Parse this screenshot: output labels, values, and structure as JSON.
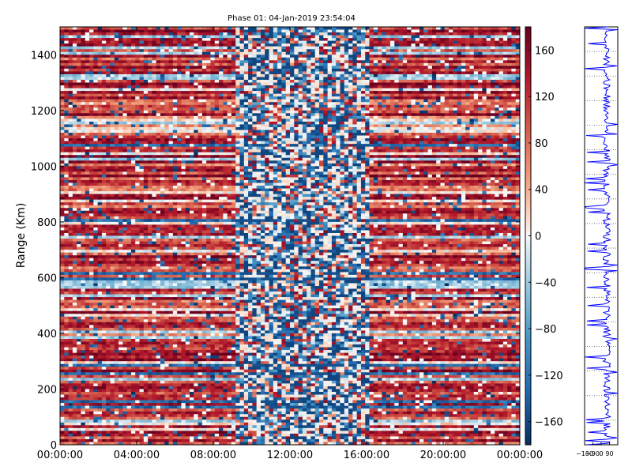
{
  "chart_data": [
    {
      "type": "heatmap",
      "title": "Phase 01: 04-Jan-2019 23:54:04",
      "ylabel": "Range (Km)",
      "xlabel": "",
      "x_ticks": [
        "00:00:00",
        "04:00:00",
        "08:00:00",
        "12:00:00",
        "16:00:00",
        "20:00:00",
        "00:00:00"
      ],
      "x_range_hours": [
        0,
        24
      ],
      "y_ticks": [
        0,
        200,
        400,
        600,
        800,
        1000,
        1200,
        1400
      ],
      "ylim": [
        0,
        1500
      ],
      "colorbar": {
        "ticks": [
          160,
          120,
          80,
          40,
          0,
          -40,
          -80,
          -120,
          -160
        ],
        "range": [
          -180,
          180
        ],
        "colormap": "RdBu_r"
      },
      "regions": [
        {
          "hours": [
            0,
            9.2
          ],
          "character": "mostly red (positive phase, ~60 to 180)"
        },
        {
          "hours": [
            9.2,
            16.2
          ],
          "character": "mixed white / blue (phase near 0 to -180)"
        },
        {
          "hours": [
            16.2,
            24
          ],
          "character": "mostly red (positive phase, ~60 to 180)"
        }
      ]
    },
    {
      "type": "line",
      "title": "",
      "x_ticks": [
        "-180",
        "-90",
        "0",
        "90"
      ],
      "xlim": [
        -180,
        180
      ],
      "ylim": [
        0,
        1500
      ],
      "series_color": "#0000ff"
    }
  ]
}
